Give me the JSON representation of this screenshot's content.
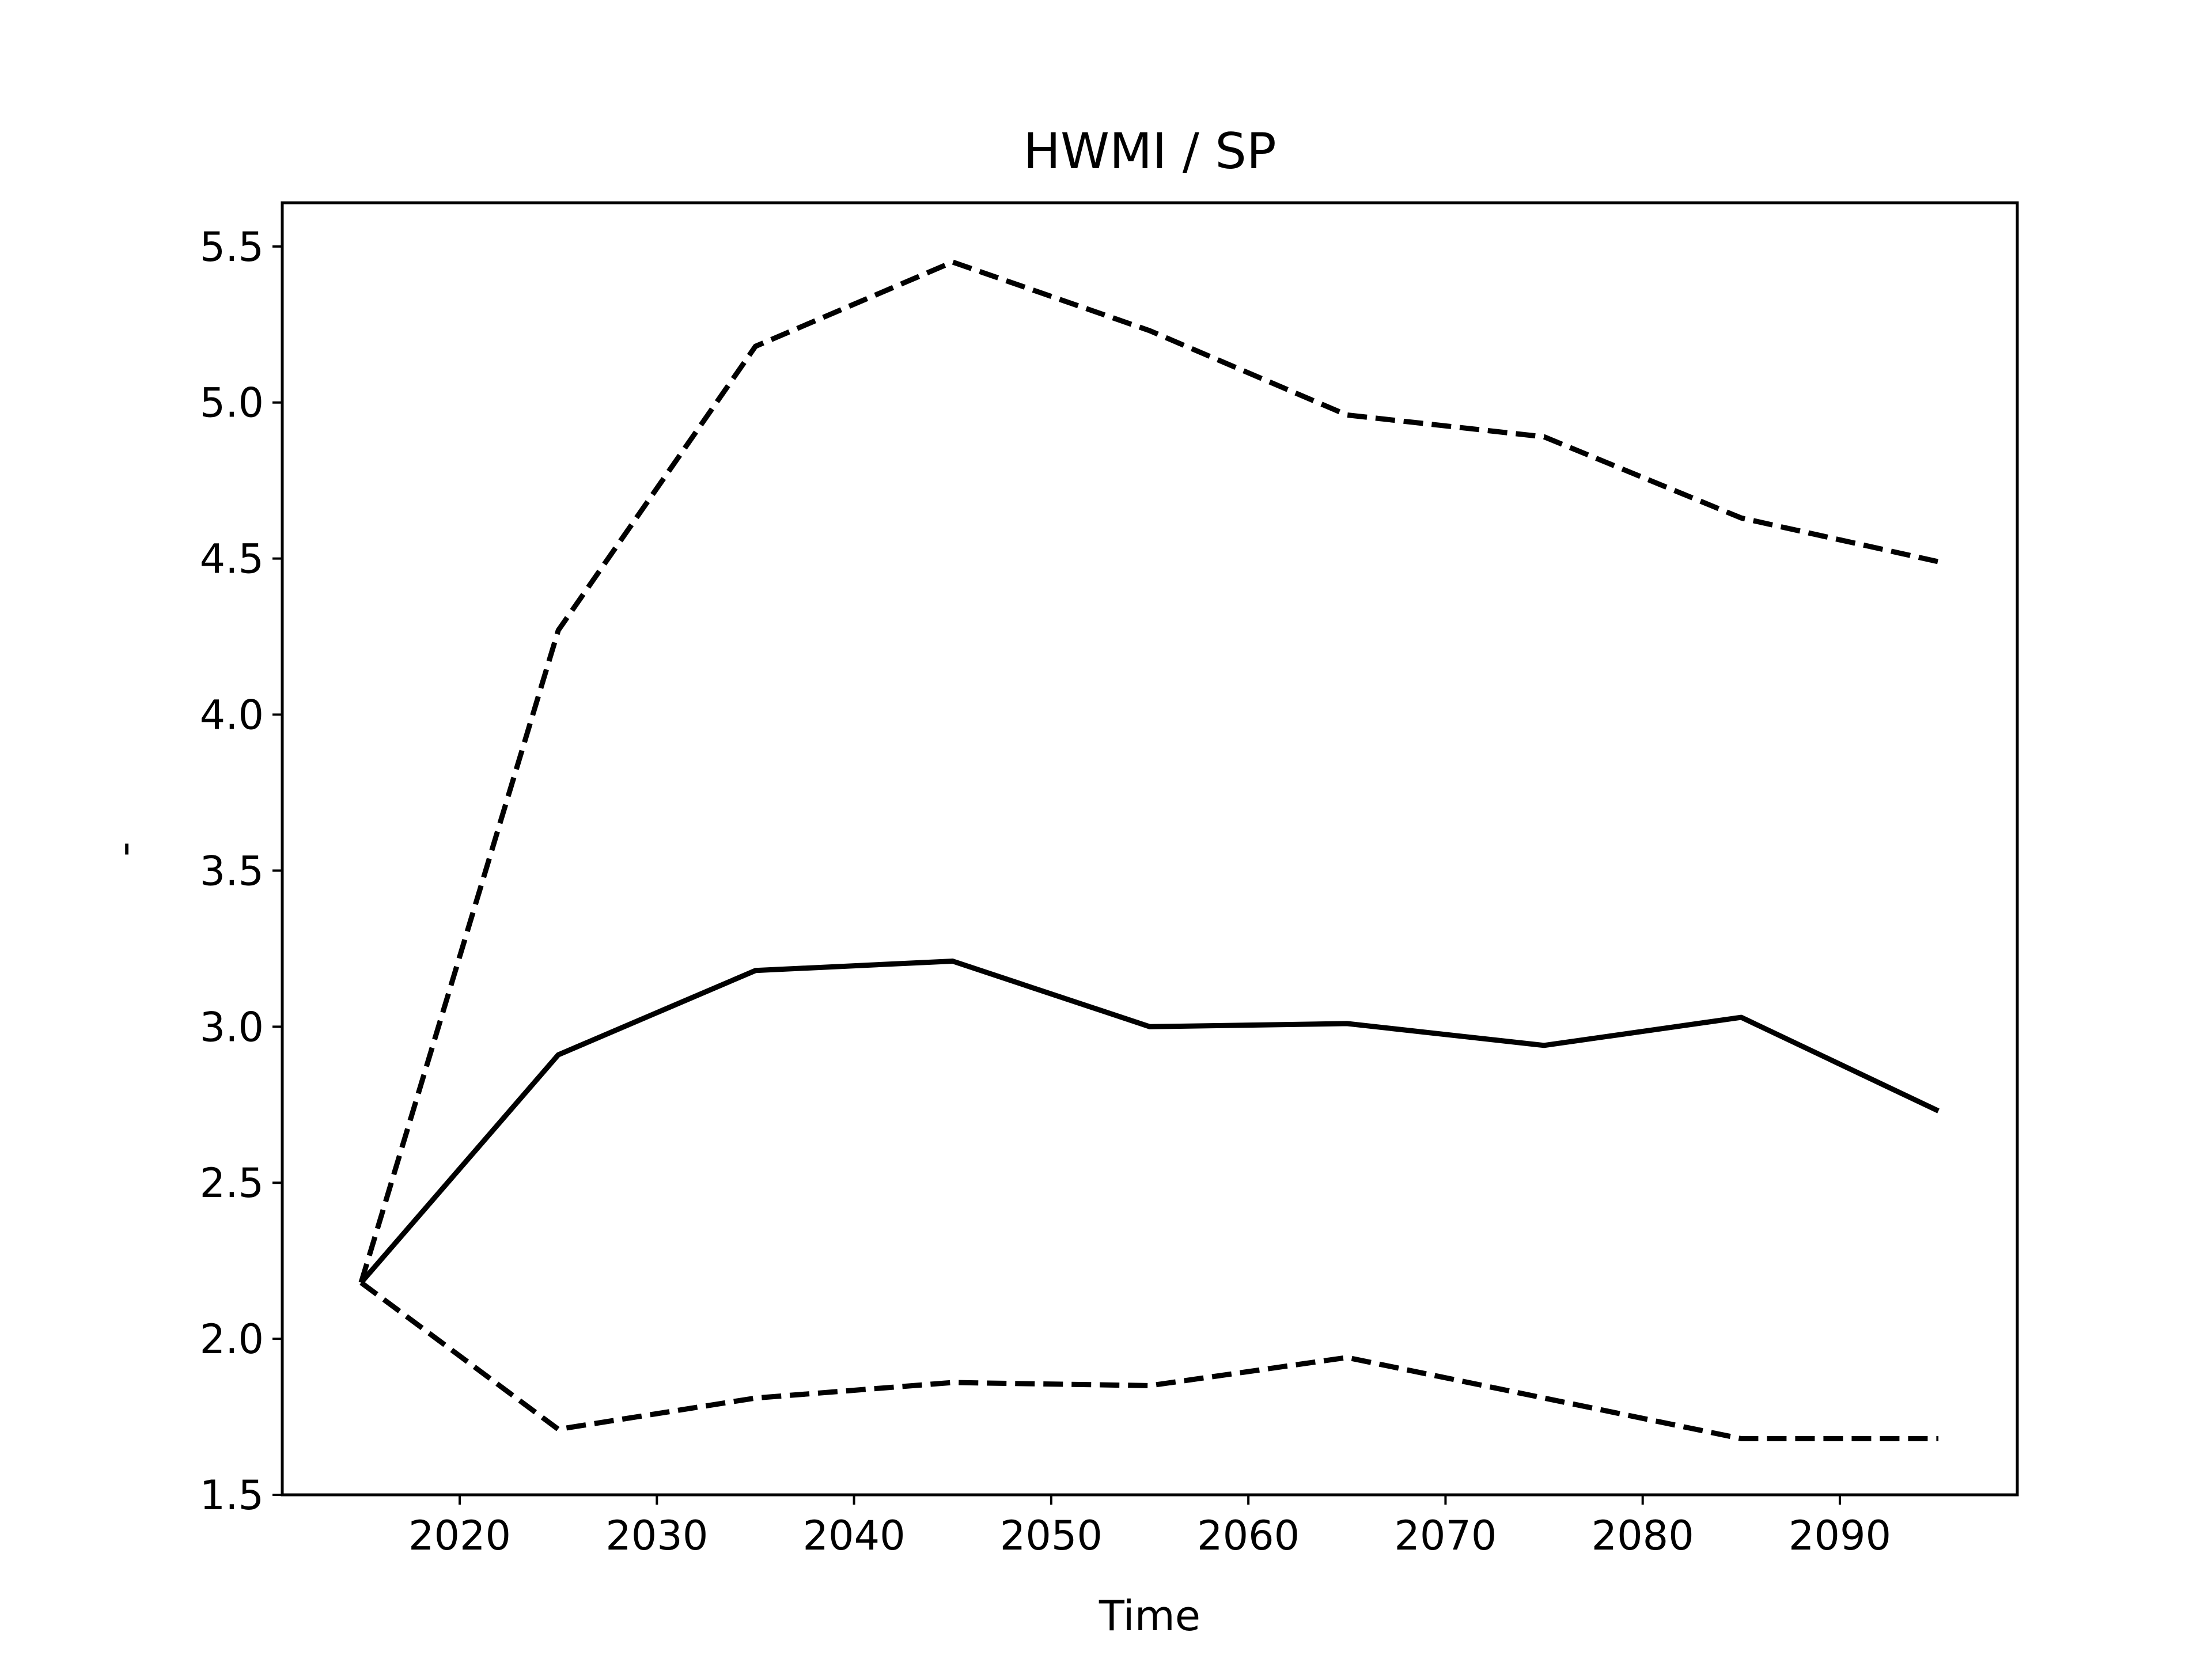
{
  "chart_data": {
    "type": "line",
    "title": "HWMI / SP",
    "xlabel": "Time",
    "ylabel": "-",
    "x": [
      2015,
      2025,
      2035,
      2045,
      2055,
      2065,
      2075,
      2085,
      2095
    ],
    "series": [
      {
        "style": "solid",
        "values": [
          2.18,
          2.91,
          3.18,
          3.21,
          3.0,
          3.01,
          2.94,
          3.03,
          2.73
        ]
      },
      {
        "style": "dashed",
        "values": [
          2.18,
          4.27,
          5.18,
          5.45,
          5.23,
          4.96,
          4.89,
          4.63,
          4.49
        ]
      },
      {
        "style": "dashed",
        "values": [
          2.18,
          1.71,
          1.81,
          1.86,
          1.85,
          1.94,
          1.81,
          1.68,
          1.68
        ]
      }
    ],
    "xlim": [
      2011,
      2099
    ],
    "ylim": [
      1.5,
      5.64
    ],
    "xticks": [
      2020,
      2030,
      2040,
      2050,
      2060,
      2070,
      2080,
      2090
    ],
    "xtick_labels": [
      "2020",
      "2030",
      "2040",
      "2050",
      "2060",
      "2070",
      "2080",
      "2090"
    ],
    "yticks": [
      1.5,
      2.0,
      2.5,
      3.0,
      3.5,
      4.0,
      4.5,
      5.0,
      5.5
    ],
    "ytick_labels": [
      "1.5",
      "2.0",
      "2.5",
      "3.0",
      "3.5",
      "4.0",
      "4.5",
      "5.0",
      "5.5"
    ],
    "grid": false,
    "legend": "none",
    "line_color": "#000000"
  }
}
